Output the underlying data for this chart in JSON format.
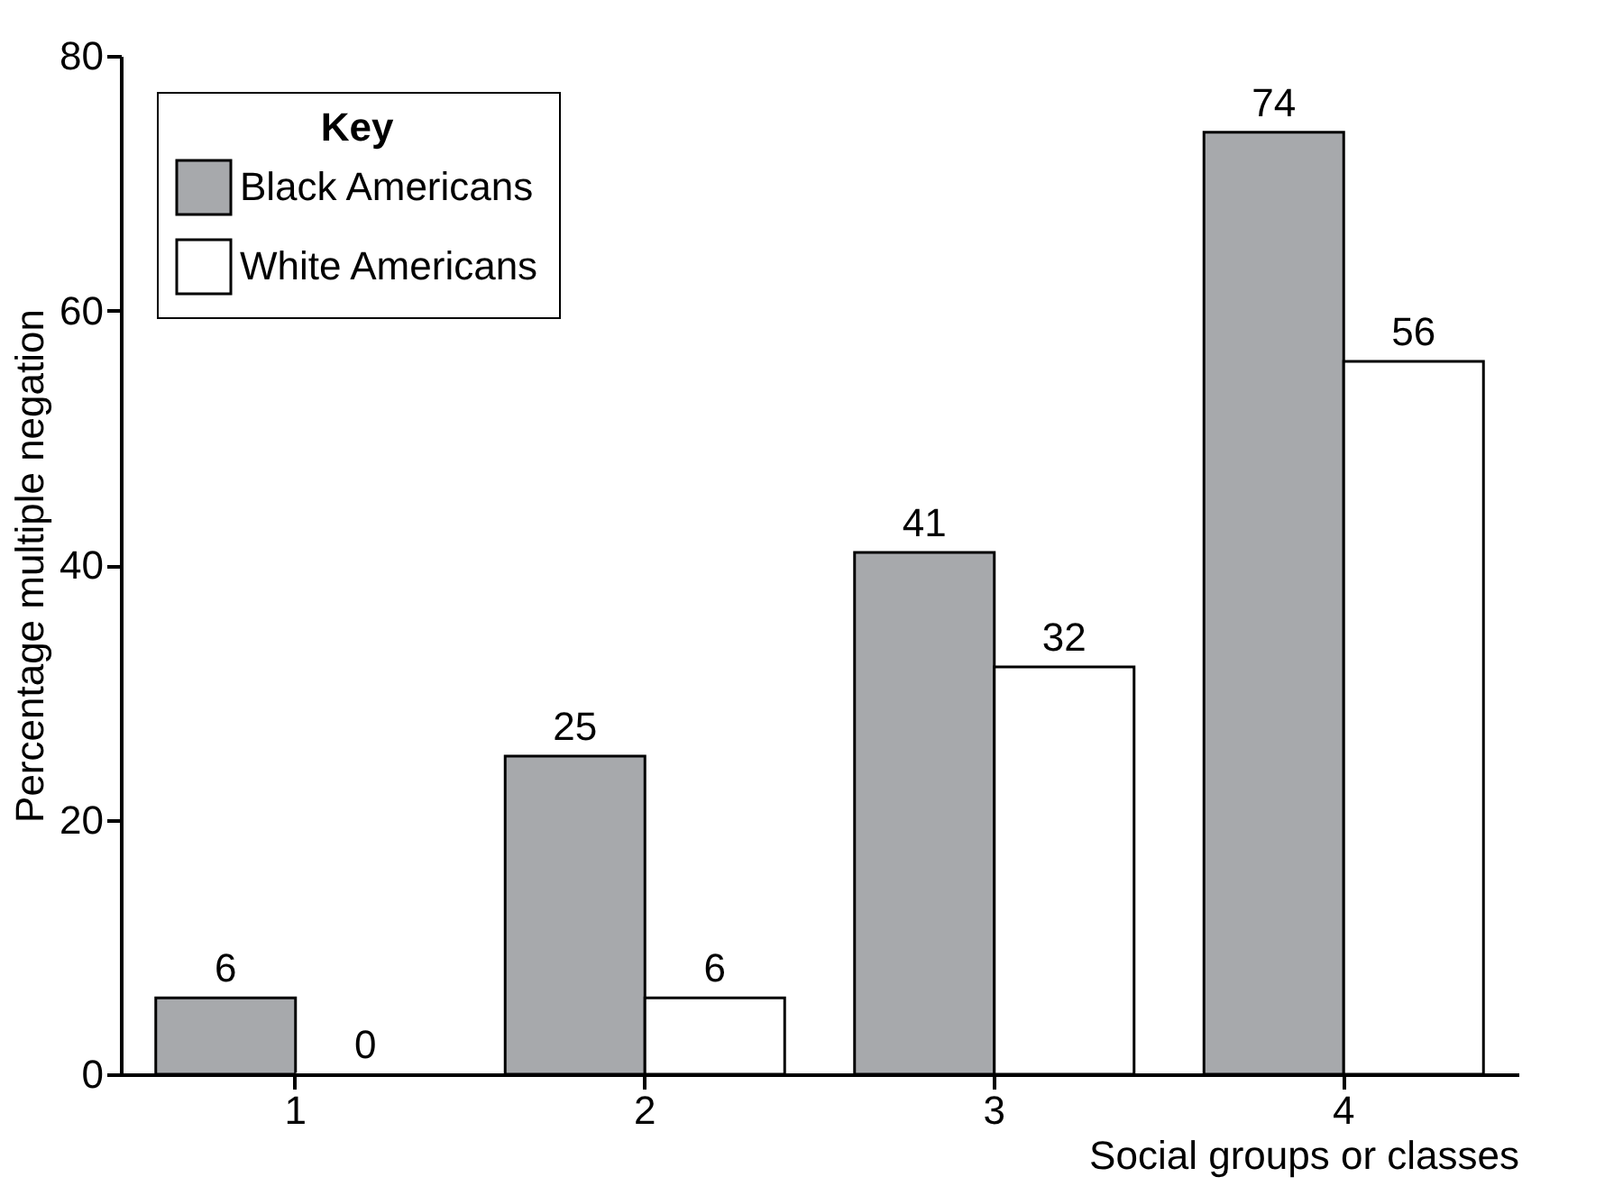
{
  "chart_data": {
    "type": "bar",
    "xlabel": "Social groups or classes",
    "ylabel": "Percentage multiple negation",
    "legend_title": "Key",
    "categories": [
      "1",
      "2",
      "3",
      "4"
    ],
    "series": [
      {
        "name": "Black Americans",
        "color": "#a7a9ac",
        "values": [
          6,
          25,
          41,
          74
        ]
      },
      {
        "name": "White Americans",
        "color": "#ffffff",
        "values": [
          0,
          6,
          32,
          56
        ]
      }
    ],
    "ylim": [
      0,
      80
    ],
    "yticks": [
      0,
      20,
      40,
      60,
      80
    ],
    "data_labels": true,
    "legend": "top left",
    "grid": false
  }
}
